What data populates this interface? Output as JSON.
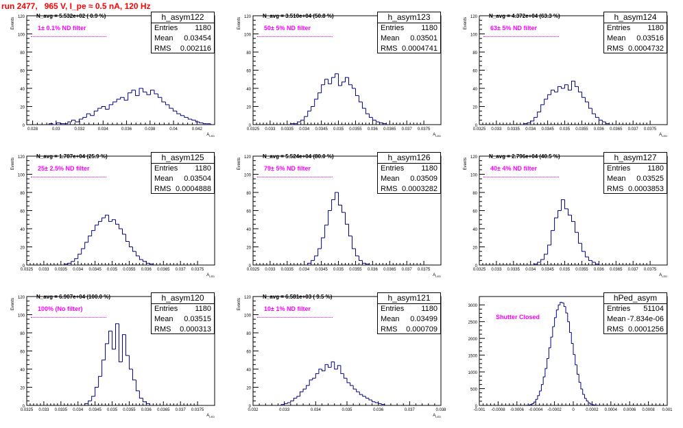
{
  "page_title": "run 2477,   965 V, I_pe ≈ 0.5 nA, 120 Hz",
  "colors": {
    "title": "#ff0000",
    "histogram": "#000080",
    "annotation": "#ff00ff"
  },
  "chart_data": [
    {
      "type": "histogram",
      "name": "h_asym122",
      "stats": {
        "entries": "1180",
        "mean": "0.03454",
        "rms": "0.002116"
      },
      "n_avg": "N_avg = 5.532e+02 ( 0.9 %)",
      "annotation": "1± 0.1% ND filter",
      "xlabel": "A_LED",
      "ylabel": "Events",
      "xlim": [
        0.0275,
        0.0435
      ],
      "ylim": [
        0,
        120
      ],
      "xticks": [
        0.028,
        0.03,
        0.032,
        0.034,
        0.036,
        0.038,
        0.04,
        0.042
      ],
      "xtick_labels": [
        "0.028",
        "0.03",
        "0.032",
        "0.034",
        "0.036",
        "0.038",
        "0.04",
        "0.042"
      ],
      "yticks": [
        0,
        20,
        40,
        60,
        80,
        100,
        120
      ],
      "bins": {
        "start": 0.0294,
        "width": 0.00032,
        "counts": [
          1,
          0,
          2,
          1,
          1,
          3,
          5,
          3,
          6,
          8,
          12,
          10,
          15,
          18,
          20,
          17,
          22,
          25,
          28,
          30,
          27,
          35,
          38,
          32,
          40,
          36,
          33,
          38,
          34,
          30,
          25,
          22,
          18,
          15,
          12,
          10,
          8,
          6,
          5,
          3,
          2,
          1,
          1
        ]
      }
    },
    {
      "type": "histogram",
      "name": "h_asym123",
      "stats": {
        "entries": "1180",
        "mean": "0.03501",
        "rms": "0.0004741"
      },
      "n_avg": "N_avg = 3.510e+04 (50.8 %)",
      "annotation": "50± 5% ND filter",
      "xlabel": "A_LED",
      "ylabel": "Events",
      "xlim": [
        0.0325,
        0.038
      ],
      "ylim": [
        0,
        120
      ],
      "xticks": [
        0.0325,
        0.033,
        0.0335,
        0.034,
        0.0345,
        0.035,
        0.0355,
        0.036,
        0.0365,
        0.037,
        0.0375
      ],
      "xtick_labels": [
        "0.0325",
        "0.033",
        "0.0335",
        "0.034",
        "0.0345",
        "0.035",
        "0.0355",
        "0.036",
        "0.0365",
        "0.037",
        "0.0375"
      ],
      "yticks": [
        0,
        20,
        40,
        60,
        80,
        100,
        120
      ],
      "bins": {
        "start": 0.0336,
        "width": 0.0001,
        "counts": [
          1,
          1,
          3,
          5,
          9,
          15,
          20,
          28,
          35,
          44,
          50,
          45,
          52,
          56,
          43,
          47,
          52,
          44,
          40,
          32,
          25,
          18,
          12,
          8,
          5,
          3,
          2,
          1
        ]
      }
    },
    {
      "type": "histogram",
      "name": "h_asym124",
      "stats": {
        "entries": "1180",
        "mean": "0.03516",
        "rms": "0.0004732"
      },
      "n_avg": "N_avg = 4.372e+04 (63.3 %)",
      "annotation": "63± 5% ND filter",
      "xlabel": "A_LED",
      "ylabel": "Events",
      "xlim": [
        0.0325,
        0.038
      ],
      "ylim": [
        0,
        120
      ],
      "xticks": [
        0.0325,
        0.033,
        0.0335,
        0.034,
        0.0345,
        0.035,
        0.0355,
        0.036,
        0.0365,
        0.037,
        0.0375
      ],
      "xtick_labels": [
        "0.0325",
        "0.033",
        "0.0335",
        "0.034",
        "0.0345",
        "0.035",
        "0.0355",
        "0.036",
        "0.0365",
        "0.037",
        "0.0375"
      ],
      "yticks": [
        0,
        20,
        40,
        60,
        80,
        100,
        120
      ],
      "bins": {
        "start": 0.0338,
        "width": 0.0001,
        "counts": [
          1,
          2,
          4,
          8,
          14,
          22,
          28,
          33,
          38,
          36,
          42,
          40,
          44,
          38,
          48,
          42,
          36,
          30,
          25,
          18,
          12,
          8,
          5,
          3,
          1
        ]
      }
    },
    {
      "type": "histogram",
      "name": "h_asym125",
      "stats": {
        "entries": "1180",
        "mean": "0.03504",
        "rms": "0.0004888"
      },
      "n_avg": "N_avg = 1.787e+04 (25.9 %)",
      "annotation": "25± 2.5% ND filter",
      "xlabel": "A_LED",
      "ylabel": "Events",
      "xlim": [
        0.0325,
        0.038
      ],
      "ylim": [
        0,
        120
      ],
      "xticks": [
        0.0325,
        0.033,
        0.0335,
        0.034,
        0.0345,
        0.035,
        0.0355,
        0.036,
        0.0365,
        0.037,
        0.0375
      ],
      "xtick_labels": [
        "0.0325",
        "0.033",
        "0.0335",
        "0.034",
        "0.0345",
        "0.035",
        "0.0355",
        "0.036",
        "0.0365",
        "0.037",
        "0.0375"
      ],
      "yticks": [
        0,
        20,
        40,
        60,
        80,
        100,
        120
      ],
      "bins": {
        "start": 0.0336,
        "width": 0.0001,
        "counts": [
          1,
          2,
          4,
          7,
          12,
          18,
          25,
          32,
          38,
          44,
          48,
          52,
          55,
          48,
          50,
          45,
          40,
          34,
          26,
          20,
          15,
          10,
          6,
          4,
          2,
          1
        ]
      }
    },
    {
      "type": "histogram",
      "name": "h_asym126",
      "stats": {
        "entries": "1180",
        "mean": "0.03509",
        "rms": "0.0003282"
      },
      "n_avg": "N_avg = 5.524e+04 (80.0 %)",
      "annotation": "79± 5% ND filter",
      "xlabel": "A_LED",
      "ylabel": "Events",
      "xlim": [
        0.0325,
        0.038
      ],
      "ylim": [
        0,
        120
      ],
      "xticks": [
        0.0325,
        0.033,
        0.0335,
        0.034,
        0.0345,
        0.035,
        0.0355,
        0.036,
        0.0365,
        0.037,
        0.0375
      ],
      "xtick_labels": [
        "0.0325",
        "0.033",
        "0.0335",
        "0.034",
        "0.0345",
        "0.035",
        "0.0355",
        "0.036",
        "0.0365",
        "0.037",
        "0.0375"
      ],
      "yticks": [
        0,
        20,
        40,
        60,
        80,
        100,
        120
      ],
      "bins": {
        "start": 0.0341,
        "width": 0.0001,
        "counts": [
          2,
          5,
          10,
          18,
          30,
          44,
          60,
          72,
          80,
          66,
          58,
          45,
          32,
          18,
          10,
          5,
          2,
          1
        ]
      }
    },
    {
      "type": "histogram",
      "name": "h_asym127",
      "stats": {
        "entries": "1180",
        "mean": "0.03525",
        "rms": "0.0003853"
      },
      "n_avg": "N_avg = 2.796e+04 (40.5 %)",
      "annotation": "40± 4% ND filter",
      "xlabel": "A_LED",
      "ylabel": "Events",
      "xlim": [
        0.0325,
        0.038
      ],
      "ylim": [
        0,
        120
      ],
      "xticks": [
        0.0325,
        0.033,
        0.0335,
        0.034,
        0.0345,
        0.035,
        0.0355,
        0.036,
        0.0365,
        0.037,
        0.0375
      ],
      "xtick_labels": [
        "0.0325",
        "0.033",
        "0.0335",
        "0.034",
        "0.0345",
        "0.035",
        "0.0355",
        "0.036",
        "0.0365",
        "0.037",
        "0.0375"
      ],
      "yticks": [
        0,
        20,
        40,
        60,
        80,
        100,
        120
      ],
      "bins": {
        "start": 0.0341,
        "width": 0.0001,
        "counts": [
          1,
          3,
          6,
          12,
          22,
          38,
          52,
          60,
          72,
          62,
          55,
          48,
          36,
          24,
          15,
          9,
          5,
          3,
          1
        ]
      }
    },
    {
      "type": "histogram",
      "name": "h_asym120",
      "stats": {
        "entries": "1180",
        "mean": "0.03515",
        "rms": "0.000313"
      },
      "n_avg": "N_avg = 6.907e+04 (100.0 %)",
      "annotation": "100% (No filter)",
      "xlabel": "A_LED",
      "ylabel": "Events",
      "xlim": [
        0.0325,
        0.038
      ],
      "ylim": [
        0,
        120
      ],
      "xticks": [
        0.0325,
        0.033,
        0.0335,
        0.034,
        0.0345,
        0.035,
        0.0355,
        0.036,
        0.0365,
        0.037,
        0.0375
      ],
      "xtick_labels": [
        "0.0325",
        "0.033",
        "0.0335",
        "0.034",
        "0.0345",
        "0.035",
        "0.0355",
        "0.036",
        "0.0365",
        "0.037",
        "0.0375"
      ],
      "yticks": [
        0,
        20,
        40,
        60,
        80,
        100,
        120
      ],
      "bins": {
        "start": 0.0342,
        "width": 0.0001,
        "counts": [
          2,
          5,
          10,
          20,
          32,
          50,
          68,
          82,
          62,
          90,
          48,
          78,
          55,
          40,
          28,
          16,
          8,
          4,
          2
        ]
      }
    },
    {
      "type": "histogram",
      "name": "h_asym121",
      "stats": {
        "entries": "1180",
        "mean": "0.03499",
        "rms": "0.000709"
      },
      "n_avg": "N_avg = 6.581e+03 ( 9.5 %)",
      "annotation": "10± 1% ND filter",
      "xlabel": "A_LED",
      "ylabel": "Events",
      "xlim": [
        0.032,
        0.038
      ],
      "ylim": [
        0,
        120
      ],
      "xticks": [
        0.032,
        0.033,
        0.034,
        0.035,
        0.036,
        0.037,
        0.038
      ],
      "xtick_labels": [
        "0.032",
        "0.033",
        "0.034",
        "0.035",
        "0.036",
        "0.037",
        "0.038"
      ],
      "yticks": [
        0,
        20,
        40,
        60,
        80,
        100,
        120
      ],
      "bins": {
        "start": 0.0329,
        "width": 0.0001,
        "counts": [
          1,
          2,
          3,
          5,
          8,
          10,
          15,
          18,
          22,
          28,
          30,
          35,
          40,
          38,
          45,
          42,
          48,
          40,
          44,
          35,
          30,
          25,
          22,
          18,
          15,
          12,
          10,
          8,
          6,
          4,
          3,
          2,
          1
        ]
      }
    },
    {
      "type": "histogram",
      "name": "hPed_asym",
      "stats": {
        "entries": "51104",
        "mean": "-7.834e-06",
        "rms": "0.0001256"
      },
      "n_avg": "",
      "annotation": "Shutter Closed",
      "xlabel": "",
      "ylabel": "",
      "xlim": [
        -0.001,
        0.001
      ],
      "ylim": [
        0,
        3250
      ],
      "xticks": [
        -0.001,
        -0.0008,
        -0.0006,
        -0.0004,
        -0.0002,
        0,
        0.0002,
        0.0004,
        0.0006,
        0.0008,
        0.001
      ],
      "xtick_labels": [
        "-0.001",
        "-0.0008",
        "-0.0006",
        "-0.0004",
        "-0.0002",
        "0",
        "0.0002",
        "0.0004",
        "0.0006",
        "0.0008",
        "0.001"
      ],
      "yticks": [
        0,
        500,
        1000,
        1500,
        2000,
        2500,
        3000
      ],
      "bins": {
        "start": -0.0005,
        "width": 2e-05,
        "counts": [
          5,
          10,
          25,
          50,
          100,
          180,
          290,
          430,
          620,
          850,
          1100,
          1400,
          1720,
          2040,
          2350,
          2620,
          2850,
          3000,
          3080,
          3060,
          2950,
          2760,
          2500,
          2180,
          1850,
          1520,
          1210,
          930,
          690,
          490,
          330,
          210,
          130,
          75,
          40,
          20,
          10,
          5
        ]
      }
    }
  ]
}
